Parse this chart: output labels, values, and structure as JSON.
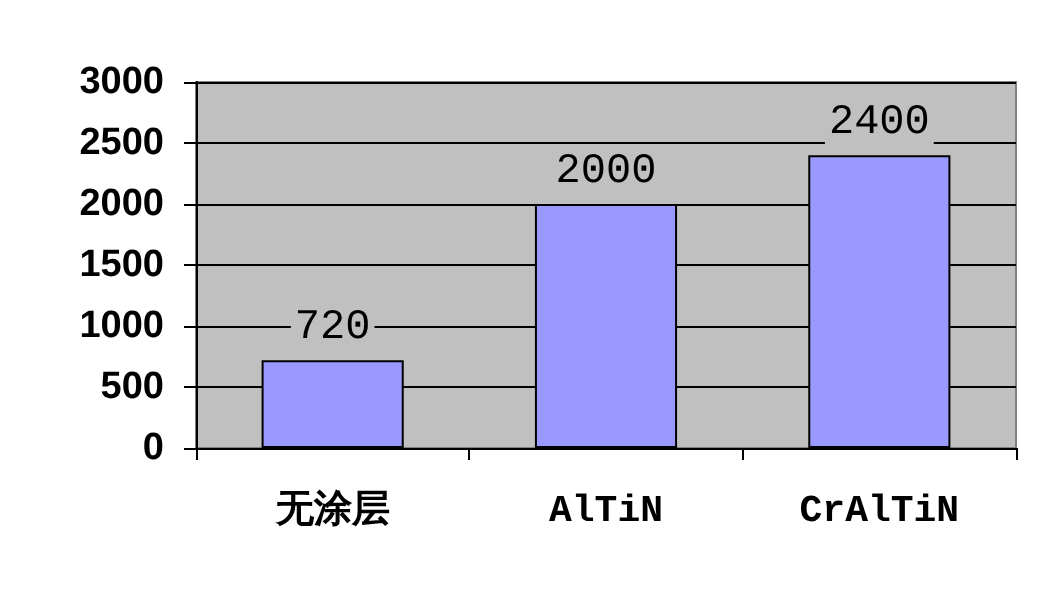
{
  "chart_data": {
    "type": "bar",
    "categories": [
      "无涂层",
      "AlTiN",
      "CrAlTiN"
    ],
    "values": [
      720,
      2000,
      2400
    ],
    "color": "#9999ff",
    "ylim": [
      0,
      3000
    ],
    "yticks": [
      0,
      500,
      1000,
      1500,
      2000,
      2500,
      3000
    ],
    "grid": "y",
    "data_labels": true
  }
}
